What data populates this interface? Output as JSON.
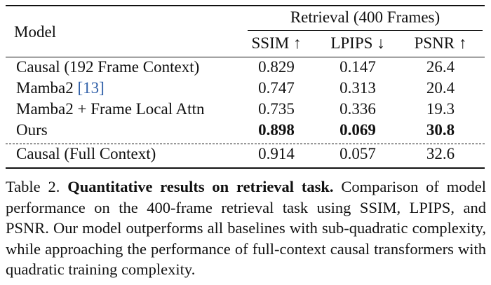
{
  "table": {
    "header": {
      "model": "Model",
      "group": "Retrieval (400 Frames)",
      "columns": [
        "SSIM ↑",
        "LPIPS ↓",
        "PSNR ↑"
      ]
    },
    "rows": [
      {
        "name": "Causal (192 Frame Context)",
        "ssim": "0.829",
        "lpips": "0.147",
        "psnr": "26.4"
      },
      {
        "name": "Mamba2 ",
        "cite": "[13]",
        "ssim": "0.747",
        "lpips": "0.313",
        "psnr": "20.4"
      },
      {
        "name": "Mamba2 + Frame Local Attn",
        "ssim": "0.735",
        "lpips": "0.336",
        "psnr": "19.3"
      },
      {
        "name": "Ours",
        "ssim": "0.898",
        "lpips": "0.069",
        "psnr": "30.8"
      },
      {
        "name": "Causal (Full Context)",
        "ssim": "0.914",
        "lpips": "0.057",
        "psnr": "32.6"
      }
    ]
  },
  "caption": {
    "label": "Table 2.",
    "bold": "Quantitative results on retrieval task.",
    "text": "Comparison of model performance on the 400-frame retrieval task using SSIM, LPIPS, and PSNR. Our model outperforms all baselines with sub-quadratic complexity, while approaching the performance of full-context causal transformers with quadratic training complexity."
  }
}
